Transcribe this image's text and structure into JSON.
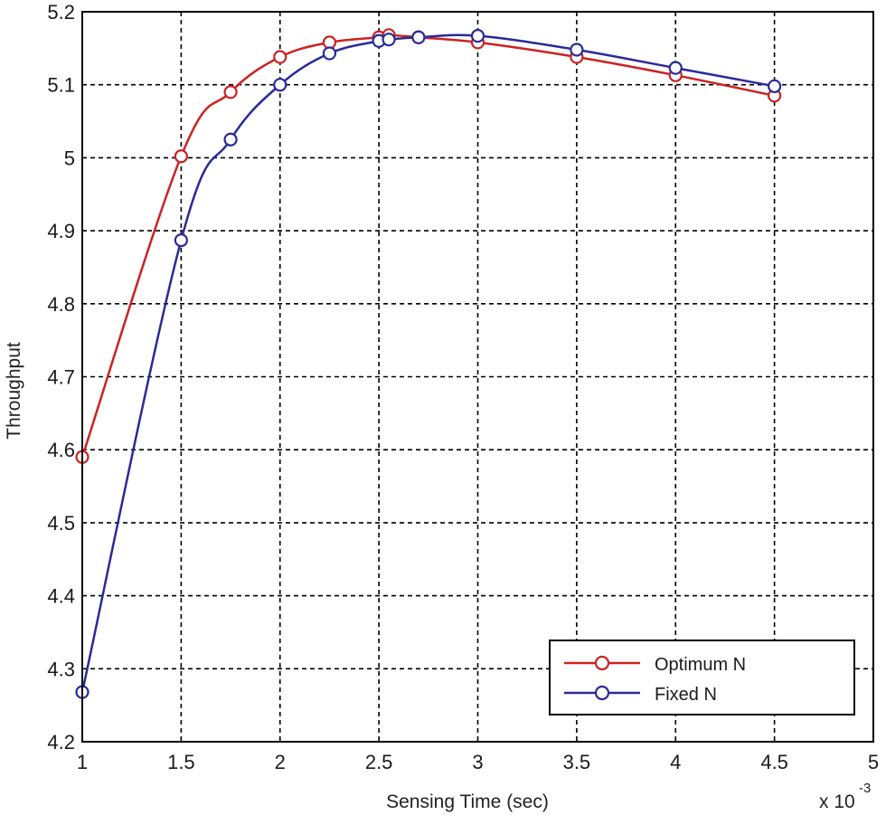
{
  "chart_data": {
    "type": "line",
    "title": "",
    "xlabel": "Sensing Time (sec)",
    "ylabel": "Throughput",
    "x_scale_label": "x 10",
    "x_scale_exponent": "-3",
    "xlim": [
      1,
      5
    ],
    "ylim": [
      4.2,
      5.2
    ],
    "x_ticks": [
      "1",
      "1.5",
      "2",
      "2.5",
      "3",
      "3.5",
      "4",
      "4.5",
      "5"
    ],
    "y_ticks": [
      "4.2",
      "4.3",
      "4.4",
      "4.5",
      "4.6",
      "4.7",
      "4.8",
      "4.9",
      "5",
      "5.1",
      "5.2"
    ],
    "grid": true,
    "legend_position": "bottom-right",
    "series": [
      {
        "name": "Optimum N",
        "color": "#cc2222",
        "marker": "circle",
        "x": [
          1.0,
          1.5,
          1.75,
          2.0,
          2.25,
          2.5,
          2.55,
          2.7,
          3.0,
          3.5,
          4.0,
          4.5
        ],
        "y": [
          4.59,
          5.002,
          5.09,
          5.138,
          5.158,
          5.165,
          5.168,
          5.165,
          5.158,
          5.138,
          5.113,
          5.085
        ]
      },
      {
        "name": "Fixed N",
        "color": "#2a2a99",
        "marker": "circle",
        "x": [
          1.0,
          1.5,
          1.75,
          2.0,
          2.25,
          2.5,
          2.55,
          2.7,
          3.0,
          3.5,
          4.0,
          4.5
        ],
        "y": [
          4.268,
          4.887,
          5.025,
          5.1,
          5.143,
          5.16,
          5.162,
          5.165,
          5.167,
          5.148,
          5.123,
          5.098
        ]
      }
    ]
  }
}
